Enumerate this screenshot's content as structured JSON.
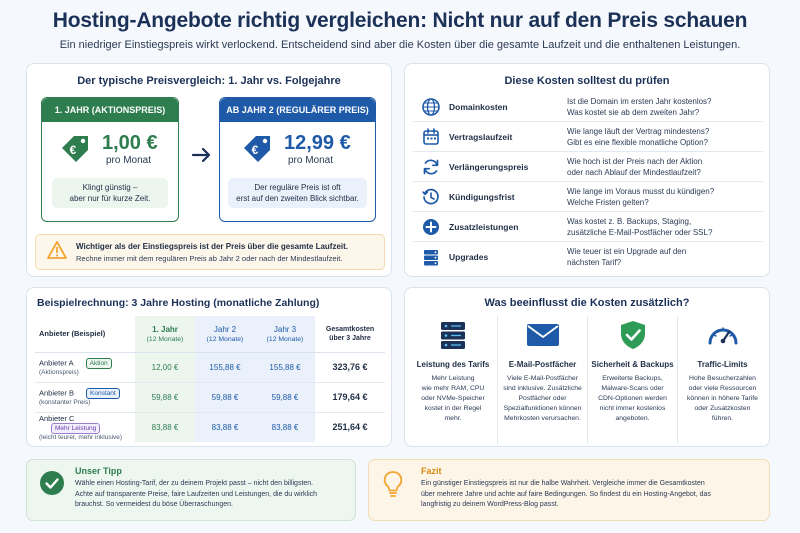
{
  "header": {
    "title": "Hosting-Angebote richtig vergleichen: Nicht nur auf den Preis schauen",
    "subtitle": "Ein niedriger Einstiegspreis wirkt verlockend. Entscheidend sind aber die Kosten über die gesamte Laufzeit und die enthaltenen Leistungen."
  },
  "price_compare": {
    "title": "Der typische Preisvergleich: 1. Jahr vs. Folgejahre",
    "year1": {
      "label": "1. JAHR (AKTIONSPREIS)",
      "price": "1,00 €",
      "period": "pro Monat",
      "note_line1": "Klingt günstig –",
      "note_line2": "aber nur für kurze Zeit."
    },
    "year2": {
      "label": "AB JAHR 2 (REGULÄRER PREIS)",
      "price": "12,99 €",
      "period": "pro Monat",
      "note_line1": "Der reguläre Preis ist oft",
      "note_line2": "erst auf den zweiten Blick sichtbar."
    },
    "warning": {
      "title": "Wichtiger als der Einstiegspreis ist der Preis über die gesamte Laufzeit.",
      "text": "Rechne immer mit dem regulären Preis ab Jahr 2 oder nach der Mindestlaufzeit."
    }
  },
  "costs": {
    "title": "Diese Kosten solltest du prüfen",
    "rows": [
      {
        "icon": "globe-icon",
        "label": "Domainkosten",
        "q1": "Ist die Domain im ersten Jahr kostenlos?",
        "q2": "Was kostet sie ab dem zweiten Jahr?"
      },
      {
        "icon": "calendar-icon",
        "label": "Vertragslaufzeit",
        "q1": "Wie lange läuft der Vertrag mindestens?",
        "q2": "Gibt es eine flexible monatliche Option?"
      },
      {
        "icon": "refresh-icon",
        "label": "Verlängerungspreis",
        "q1": "Wie hoch ist der Preis nach der Aktion",
        "q2": "oder nach Ablauf der Mindestlaufzeit?"
      },
      {
        "icon": "history-icon",
        "label": "Kündigungsfrist",
        "q1": "Wie lange im Voraus musst du kündigen?",
        "q2": "Welche Fristen gelten?"
      },
      {
        "icon": "plus-circle-icon",
        "label": "Zusatzleistungen",
        "q1": "Was kostet z. B. Backups, Staging,",
        "q2": "zusätzliche E-Mail-Postfächer oder SSL?"
      },
      {
        "icon": "server-icon",
        "label": "Upgrades",
        "q1": "Wie teuer ist ein Upgrade auf den",
        "q2": "nächsten Tarif?"
      }
    ]
  },
  "example": {
    "title": "Beispielrechnung: 3 Jahre Hosting (monatliche Zahlung)",
    "headers": {
      "provider": "Anbieter (Beispiel)",
      "y1": "1. Jahr",
      "y1_sub": "(12 Monate)",
      "y2": "Jahr 2",
      "y2_sub": "(12 Monate)",
      "y3": "Jahr 3",
      "y3_sub": "(12 Monate)",
      "total": "Gesamtkosten",
      "total_sub": "über 3 Jahre"
    },
    "rows": [
      {
        "name": "Anbieter A",
        "sub": "(Aktionspreis)",
        "tag": "Aktion",
        "y1": "12,00 €",
        "y2": "155,88 €",
        "y3": "155,88 €",
        "total": "323,76 €"
      },
      {
        "name": "Anbieter B",
        "sub": "(konstanter Preis)",
        "tag": "Konstant",
        "y1": "59,88 €",
        "y2": "59,88 €",
        "y3": "59,88 €",
        "total": "179,64 €"
      },
      {
        "name": "Anbieter C",
        "sub": "(leicht teurer, mehr inklusive)",
        "tag": "Mehr Leistung",
        "y1": "83,88 €",
        "y2": "83,88 €",
        "y3": "83,88 €",
        "total": "251,64 €"
      }
    ]
  },
  "factors": {
    "title": "Was beeinflusst die Kosten zusätzlich?",
    "items": [
      {
        "icon": "server-stack-icon",
        "title": "Leistung des Tarifs",
        "lines": [
          "Mehr Leistung",
          "wie mehr RAM, CPU",
          "oder NVMe-Speicher",
          "kostet in der Regel",
          "mehr."
        ]
      },
      {
        "icon": "mail-icon",
        "title": "E-Mail-Postfächer",
        "lines": [
          "Viele E-Mail-Postfächer",
          "sind inklusive. Zusätzliche",
          "Postfächer oder",
          "Spezialfunktionen können",
          "Mehrkosten verursachen."
        ]
      },
      {
        "icon": "shield-check-icon",
        "title": "Sicherheit & Backups",
        "lines": [
          "Erweiterte Backups,",
          "Malware-Scans oder",
          "CDN-Optionen werden",
          "nicht immer kostenlos",
          "angeboten."
        ]
      },
      {
        "icon": "gauge-icon",
        "title": "Traffic-Limits",
        "lines": [
          "Hohe Besucherzahlen",
          "oder viele Ressourcen",
          "können in höhere Tarife",
          "oder Zusatzkosten",
          "führen."
        ]
      }
    ]
  },
  "tip": {
    "title": "Unser Tipp",
    "line1": "Wähle einen Hosting-Tarif, der zu deinem Projekt passt – nicht den billigsten.",
    "line2": "Achte auf transparente Preise, faire Laufzeiten und Leistungen, die du wirklich",
    "line3": "brauchst. So vermeidest du böse Überraschungen."
  },
  "conclusion": {
    "title": "Fazit",
    "line1": "Ein günstiger Einstiegspreis ist nur die halbe Wahrheit. Vergleiche immer die Gesamtkosten",
    "line2": "über mehrere Jahre und achte auf faire Bedingungen. So findest du ein Hosting-Angebot, das",
    "line3": "langfristig zu deinem WordPress-Blog passt."
  },
  "colors": {
    "green": "#2e7d4f",
    "blue": "#1f5aa8",
    "navy": "#1b3158",
    "orange": "#f2a531"
  }
}
